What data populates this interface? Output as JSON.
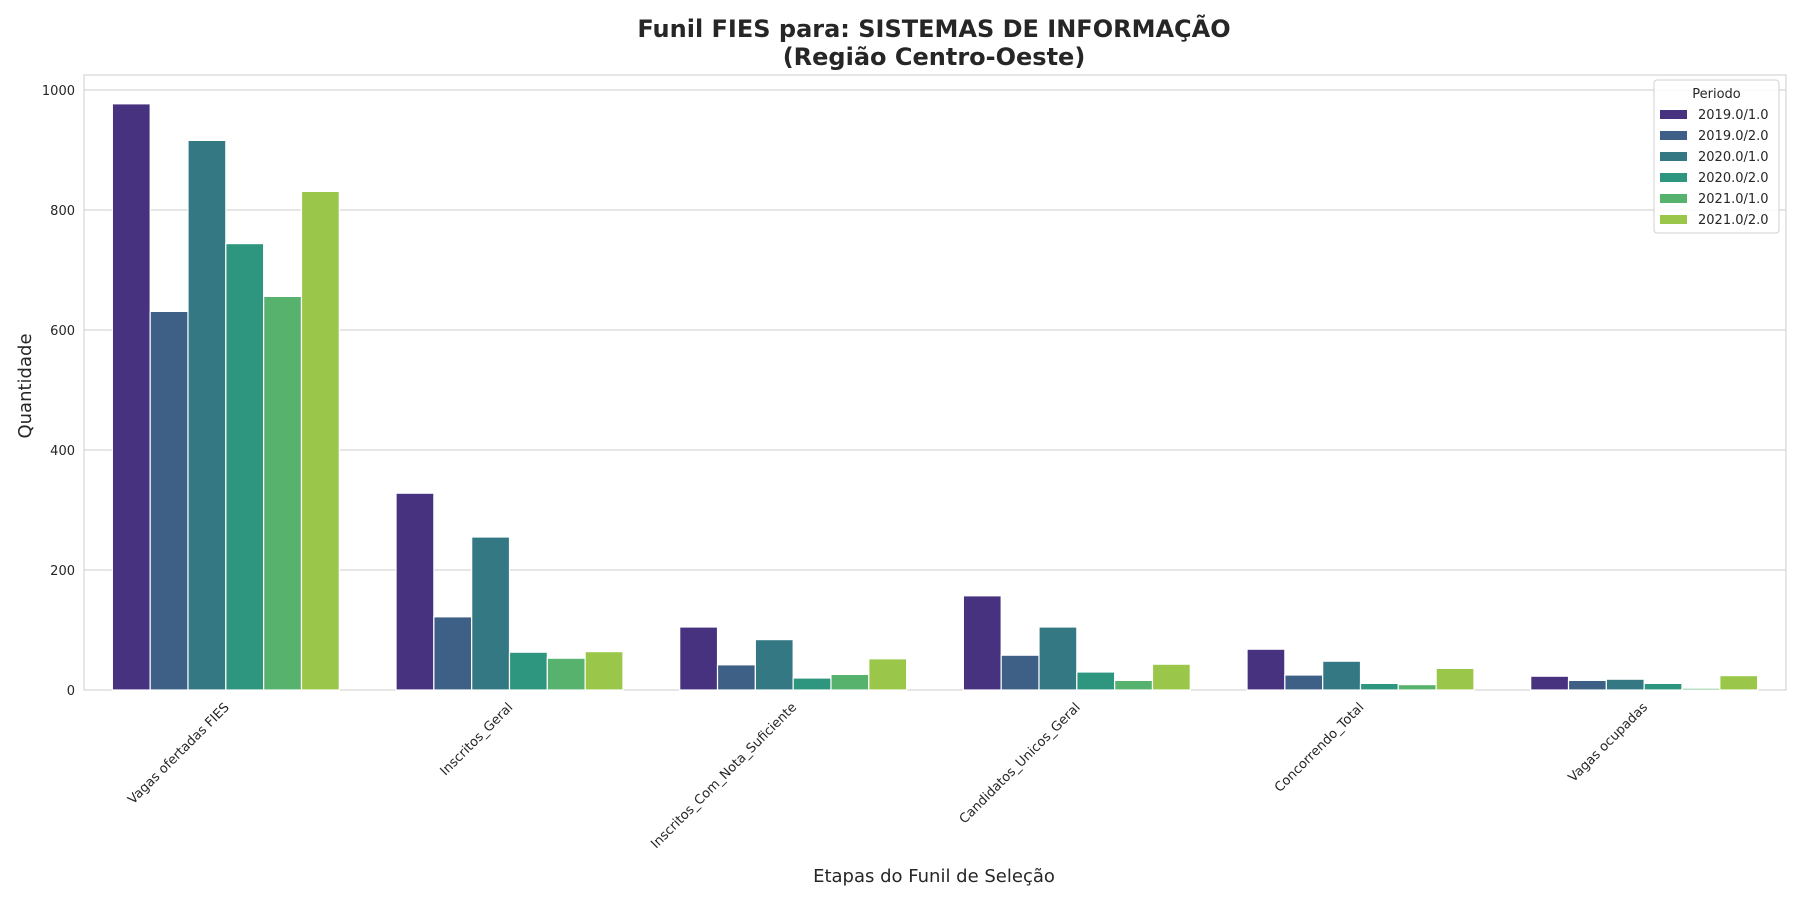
{
  "chart_data": {
    "type": "bar",
    "title_line1": "Funil FIES para: SISTEMAS DE INFORMAÇÃO",
    "title_line2": "(Região Centro-Oeste)",
    "xlabel": "Etapas do Funil de Seleção",
    "ylabel": "Quantidade",
    "ylim": [
      0,
      1025
    ],
    "yticks": [
      0,
      200,
      400,
      600,
      800,
      1000
    ],
    "grid": true,
    "legend_title": "Periodo",
    "legend_position": "top-right",
    "categories": [
      "Vagas ofertadas FIES",
      "Inscritos_Geral",
      "Inscritos_Com_Nota_Suficiente",
      "Candidatos_Unicos_Geral",
      "Concorrendo_Total",
      "Vagas ocupadas"
    ],
    "series": [
      {
        "name": "2019.0/1.0",
        "color": "#46327e",
        "values": [
          977,
          328,
          105,
          157,
          68,
          23
        ]
      },
      {
        "name": "2019.0/2.0",
        "color": "#3e5f86",
        "values": [
          631,
          122,
          42,
          58,
          25,
          16
        ]
      },
      {
        "name": "2020.0/1.0",
        "color": "#337882",
        "values": [
          916,
          255,
          84,
          105,
          48,
          18
        ]
      },
      {
        "name": "2020.0/2.0",
        "color": "#2e957f",
        "values": [
          744,
          63,
          20,
          30,
          11,
          11
        ]
      },
      {
        "name": "2021.0/1.0",
        "color": "#56b26d",
        "values": [
          656,
          53,
          26,
          16,
          9,
          3
        ]
      },
      {
        "name": "2021.0/2.0",
        "color": "#9ac74a",
        "values": [
          831,
          64,
          52,
          43,
          36,
          24
        ]
      }
    ]
  }
}
